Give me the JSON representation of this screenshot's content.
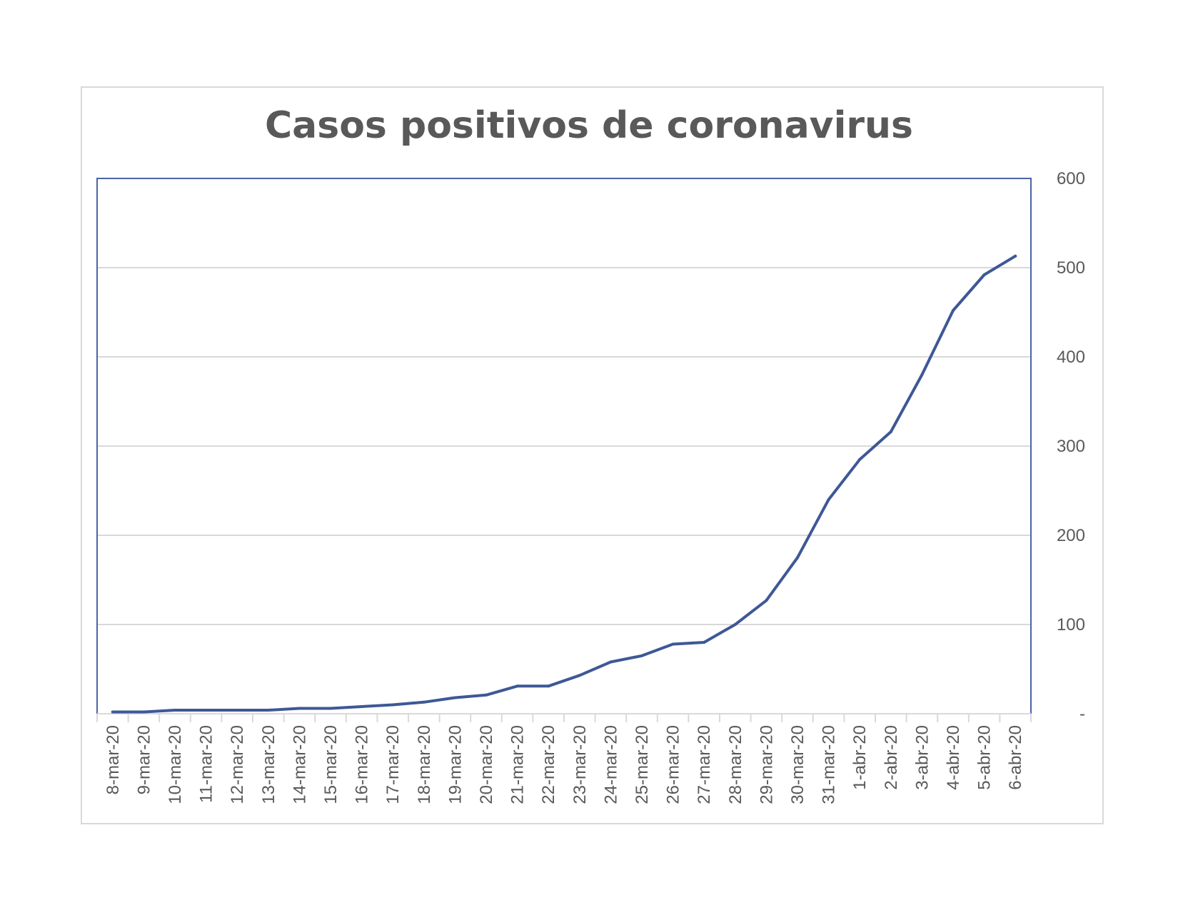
{
  "chart_data": {
    "type": "line",
    "title": "Casos positivos de coronavirus",
    "xlabel": "",
    "ylabel": "",
    "ylim": [
      0,
      600
    ],
    "y_axis_side": "right",
    "y_ticks": [
      {
        "value": 0,
        "label": "-"
      },
      {
        "value": 100,
        "label": "100"
      },
      {
        "value": 200,
        "label": "200"
      },
      {
        "value": 300,
        "label": "300"
      },
      {
        "value": 400,
        "label": "400"
      },
      {
        "value": 500,
        "label": "500"
      },
      {
        "value": 600,
        "label": "600"
      }
    ],
    "grid": true,
    "legend": "none",
    "categories": [
      "8-mar-20",
      "9-mar-20",
      "10-mar-20",
      "11-mar-20",
      "12-mar-20",
      "13-mar-20",
      "14-mar-20",
      "15-mar-20",
      "16-mar-20",
      "17-mar-20",
      "18-mar-20",
      "19-mar-20",
      "20-mar-20",
      "21-mar-20",
      "22-mar-20",
      "23-mar-20",
      "24-mar-20",
      "25-mar-20",
      "26-mar-20",
      "27-mar-20",
      "28-mar-20",
      "29-mar-20",
      "30-mar-20",
      "31-mar-20",
      "1-abr-20",
      "2-abr-20",
      "3-abr-20",
      "4-abr-20",
      "5-abr-20",
      "6-abr-20"
    ],
    "series": [
      {
        "values": [
          2,
          2,
          4,
          4,
          4,
          4,
          6,
          6,
          8,
          10,
          13,
          18,
          21,
          31,
          31,
          43,
          58,
          65,
          78,
          80,
          100,
          127,
          175,
          240,
          285,
          316,
          380,
          452,
          492,
          513
        ],
        "color": "#3e5896"
      }
    ],
    "colors": {
      "line": "#3e5896",
      "plot_border": "#4a64a8",
      "grid": "#d9d9d9",
      "text": "#595959"
    }
  }
}
